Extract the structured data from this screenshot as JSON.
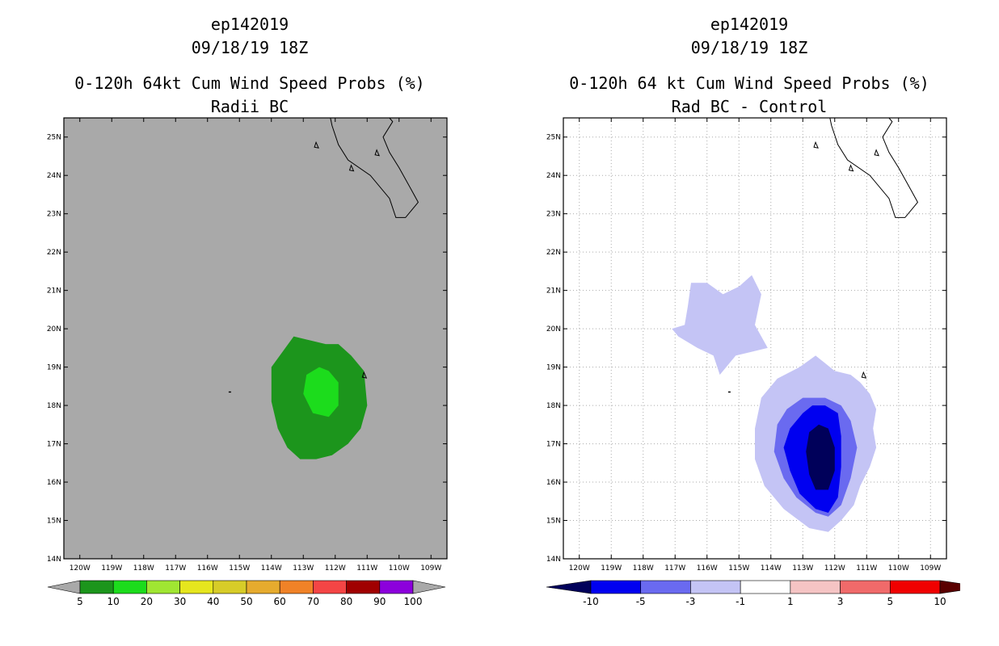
{
  "chart_data": [
    {
      "type": "filled-contour-map",
      "title_lines": [
        "ep142019",
        "09/18/19 18Z",
        "0-120h 64kt Cum Wind Speed Probs (%)",
        "Radii BC"
      ],
      "xlabel": "",
      "ylabel": "",
      "xlim": [
        -120.5,
        -108.5
      ],
      "ylim": [
        14,
        25.5
      ],
      "x_ticks": [
        "120W",
        "119W",
        "118W",
        "117W",
        "116W",
        "115W",
        "114W",
        "113W",
        "112W",
        "111W",
        "110W",
        "109W"
      ],
      "y_ticks": [
        "14N",
        "15N",
        "16N",
        "17N",
        "18N",
        "19N",
        "20N",
        "21N",
        "22N",
        "23N",
        "24N",
        "25N"
      ],
      "grid": false,
      "background": "#a9a9a9",
      "colorbar": {
        "labels": [
          "5",
          "10",
          "20",
          "30",
          "40",
          "50",
          "60",
          "70",
          "80",
          "90",
          "100"
        ],
        "colors": [
          "#a9a9a9",
          "#1c951c",
          "#1cdc1c",
          "#a0e632",
          "#e6e61e",
          "#d7cc28",
          "#e6ab2e",
          "#f08227",
          "#f44545",
          "#a00000",
          "#8c00dc",
          "#a9a9a9"
        ]
      },
      "regions": [
        {
          "level": "5-10",
          "color": "#1c951c",
          "points": [
            [
              -113.3,
              19.8
            ],
            [
              -112.8,
              19.7
            ],
            [
              -112.3,
              19.6
            ],
            [
              -111.9,
              19.6
            ],
            [
              -111.5,
              19.3
            ],
            [
              -111.1,
              18.9
            ],
            [
              -111.0,
              18.0
            ],
            [
              -111.2,
              17.4
            ],
            [
              -111.6,
              17.0
            ],
            [
              -112.1,
              16.7
            ],
            [
              -112.6,
              16.6
            ],
            [
              -113.1,
              16.6
            ],
            [
              -113.5,
              16.9
            ],
            [
              -113.8,
              17.4
            ],
            [
              -114.0,
              18.1
            ],
            [
              -114.0,
              19.0
            ]
          ]
        },
        {
          "level": "10-20",
          "color": "#1cdc1c",
          "points": [
            [
              -112.5,
              19.0
            ],
            [
              -112.2,
              18.9
            ],
            [
              -111.9,
              18.6
            ],
            [
              -111.9,
              18.0
            ],
            [
              -112.2,
              17.7
            ],
            [
              -112.7,
              17.8
            ],
            [
              -113.0,
              18.3
            ],
            [
              -112.9,
              18.8
            ]
          ]
        }
      ]
    },
    {
      "type": "filled-contour-map",
      "title_lines": [
        "ep142019",
        "09/18/19 18Z",
        "0-120h 64 kt Cum Wind Speed Probs (%)",
        "Rad BC - Control"
      ],
      "xlabel": "",
      "ylabel": "",
      "xlim": [
        -120.5,
        -108.5
      ],
      "ylim": [
        14,
        25.5
      ],
      "x_ticks": [
        "120W",
        "119W",
        "118W",
        "117W",
        "116W",
        "115W",
        "114W",
        "113W",
        "112W",
        "111W",
        "110W",
        "109W"
      ],
      "y_ticks": [
        "14N",
        "15N",
        "16N",
        "17N",
        "18N",
        "19N",
        "20N",
        "21N",
        "22N",
        "23N",
        "24N",
        "25N"
      ],
      "grid": true,
      "background": "#ffffff",
      "colorbar": {
        "labels": [
          "-10",
          "-5",
          "-3",
          "-1",
          "1",
          "3",
          "5",
          "10"
        ],
        "colors": [
          "#00005a",
          "#0000f0",
          "#6a6af0",
          "#c4c4f5",
          "#ffffff",
          "#f5c4c4",
          "#f06a6a",
          "#f00000",
          "#5a0000"
        ]
      },
      "regions": [
        {
          "level": "-3 to -1",
          "color": "#c4c4f5",
          "points": [
            [
              -116.0,
              21.2
            ],
            [
              -115.5,
              20.9
            ],
            [
              -115.0,
              21.1
            ],
            [
              -114.6,
              21.4
            ],
            [
              -114.3,
              20.9
            ],
            [
              -114.5,
              20.1
            ],
            [
              -114.1,
              19.5
            ],
            [
              -114.6,
              19.4
            ],
            [
              -115.1,
              19.3
            ],
            [
              -115.6,
              18.8
            ],
            [
              -115.8,
              19.3
            ],
            [
              -116.3,
              19.5
            ],
            [
              -116.9,
              19.8
            ],
            [
              -117.1,
              20.0
            ],
            [
              -116.7,
              20.1
            ],
            [
              -116.6,
              20.6
            ],
            [
              -116.5,
              21.2
            ]
          ]
        },
        {
          "level": "-3 to -1",
          "color": "#c4c4f5",
          "points": [
            [
              -112.6,
              19.3
            ],
            [
              -112.0,
              18.9
            ],
            [
              -111.5,
              18.8
            ],
            [
              -111.2,
              18.6
            ],
            [
              -110.9,
              18.3
            ],
            [
              -110.7,
              17.9
            ],
            [
              -110.8,
              17.4
            ],
            [
              -110.7,
              16.9
            ],
            [
              -110.9,
              16.4
            ],
            [
              -111.2,
              15.9
            ],
            [
              -111.4,
              15.4
            ],
            [
              -111.8,
              15.0
            ],
            [
              -112.2,
              14.7
            ],
            [
              -112.8,
              14.8
            ],
            [
              -113.6,
              15.3
            ],
            [
              -114.2,
              15.9
            ],
            [
              -114.5,
              16.6
            ],
            [
              -114.5,
              17.4
            ],
            [
              -114.3,
              18.2
            ],
            [
              -113.8,
              18.7
            ],
            [
              -113.1,
              19.0
            ]
          ]
        },
        {
          "level": "-5 to -3",
          "color": "#6a6af0",
          "points": [
            [
              -112.3,
              18.2
            ],
            [
              -111.8,
              18.0
            ],
            [
              -111.5,
              17.6
            ],
            [
              -111.3,
              16.9
            ],
            [
              -111.5,
              16.1
            ],
            [
              -111.8,
              15.4
            ],
            [
              -112.2,
              15.1
            ],
            [
              -112.6,
              15.2
            ],
            [
              -113.2,
              15.6
            ],
            [
              -113.6,
              16.1
            ],
            [
              -113.9,
              16.8
            ],
            [
              -113.8,
              17.5
            ],
            [
              -113.5,
              17.9
            ],
            [
              -113.0,
              18.2
            ]
          ]
        },
        {
          "level": "-10 to -5",
          "color": "#0000f0",
          "points": [
            [
              -112.3,
              18.0
            ],
            [
              -111.9,
              17.8
            ],
            [
              -111.8,
              17.2
            ],
            [
              -111.8,
              16.4
            ],
            [
              -111.9,
              15.6
            ],
            [
              -112.2,
              15.2
            ],
            [
              -112.6,
              15.3
            ],
            [
              -113.1,
              15.7
            ],
            [
              -113.4,
              16.3
            ],
            [
              -113.6,
              16.9
            ],
            [
              -113.4,
              17.4
            ],
            [
              -113.0,
              17.8
            ],
            [
              -112.7,
              18.0
            ]
          ]
        },
        {
          "level": "< -10",
          "color": "#00005a",
          "points": [
            [
              -112.5,
              17.5
            ],
            [
              -112.2,
              17.4
            ],
            [
              -112.0,
              16.9
            ],
            [
              -112.0,
              16.3
            ],
            [
              -112.2,
              15.8
            ],
            [
              -112.6,
              15.8
            ],
            [
              -112.8,
              16.2
            ],
            [
              -112.9,
              16.8
            ],
            [
              -112.8,
              17.3
            ]
          ]
        }
      ]
    }
  ]
}
